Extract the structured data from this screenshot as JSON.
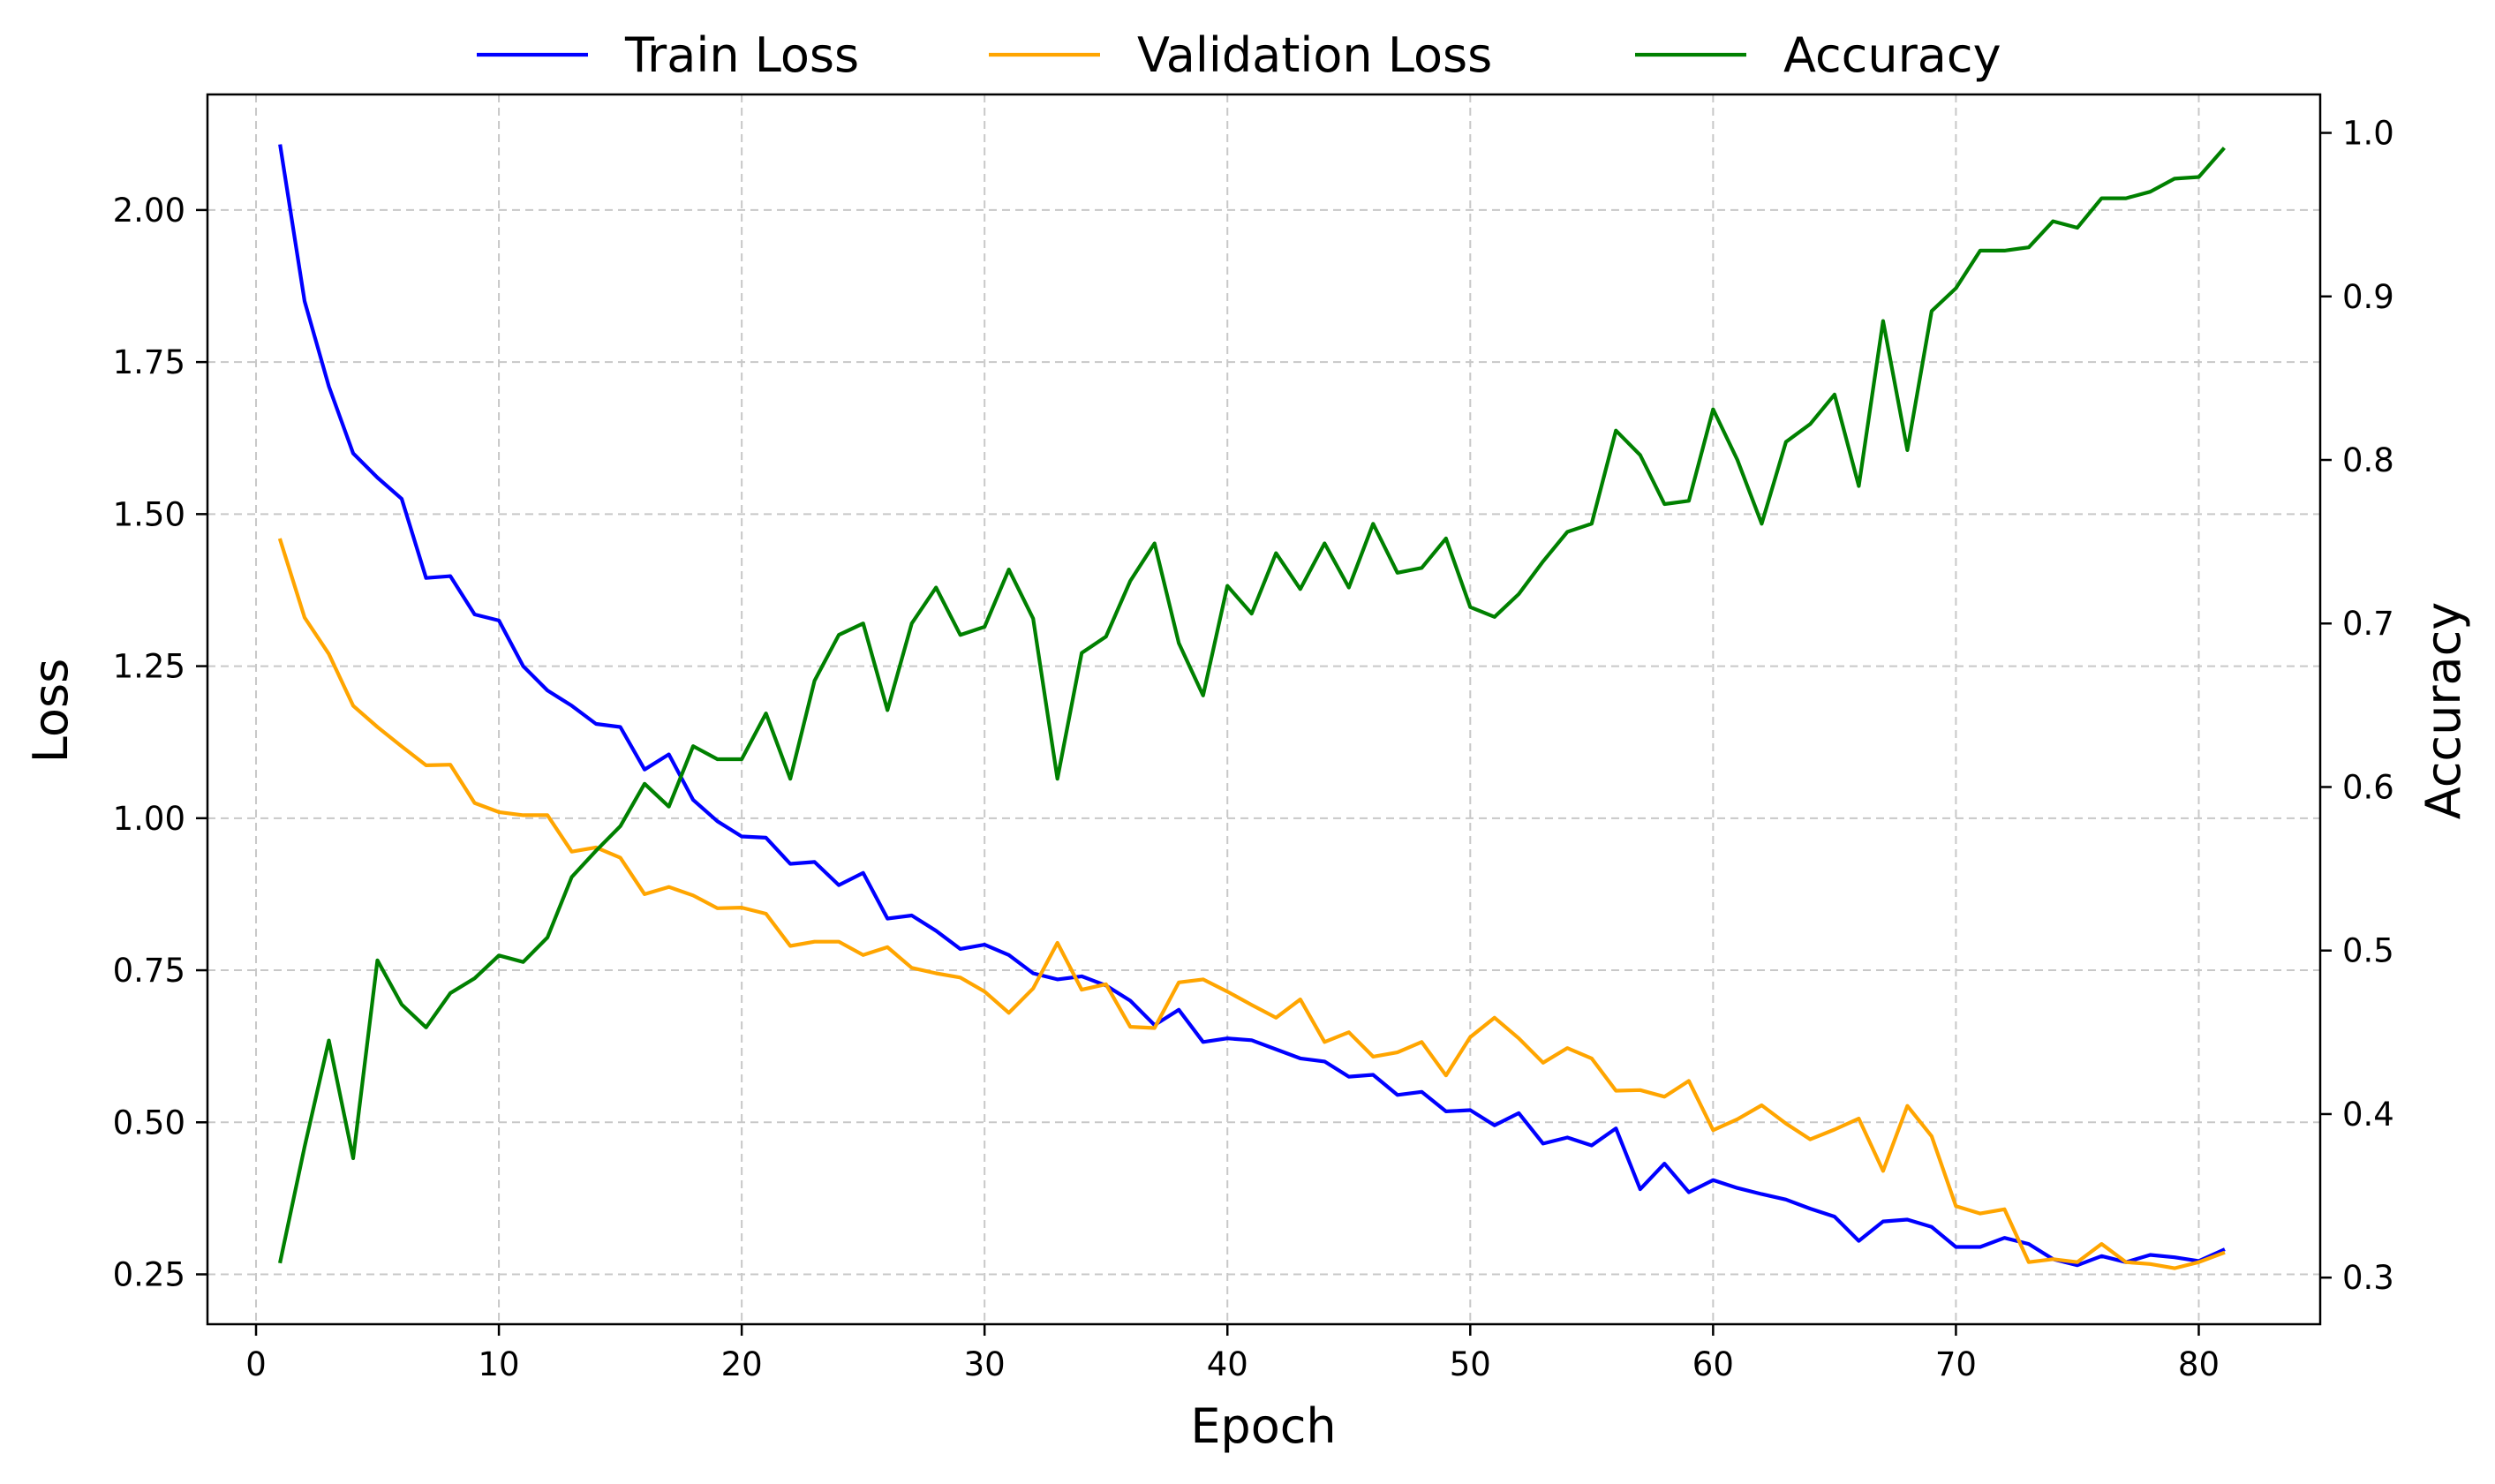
{
  "chart_data": {
    "type": "line",
    "title": "",
    "xlabel": "Epoch",
    "ylabel": "Loss",
    "y2label": "Accuracy",
    "xlim": [
      -2.0,
      85.0
    ],
    "ylim": [
      0.168,
      2.19
    ],
    "y2lim": [
      0.2715,
      1.0235
    ],
    "xticks": [
      0,
      10,
      20,
      30,
      40,
      50,
      60,
      70,
      80
    ],
    "yticks": [
      "0.25",
      "0.50",
      "0.75",
      "1.00",
      "1.25",
      "1.50",
      "1.75",
      "2.00"
    ],
    "y2ticks": [
      "0.3",
      "0.4",
      "0.5",
      "0.6",
      "0.7",
      "0.8",
      "0.9",
      "1.0"
    ],
    "grid": true,
    "legend_position": "top-center, outside",
    "x": [
      1,
      2,
      3,
      4,
      5,
      6,
      7,
      8,
      9,
      10,
      11,
      12,
      13,
      14,
      15,
      16,
      17,
      18,
      19,
      20,
      21,
      22,
      23,
      24,
      25,
      26,
      27,
      28,
      29,
      30,
      31,
      32,
      33,
      34,
      35,
      36,
      37,
      38,
      39,
      40,
      41,
      42,
      43,
      44,
      45,
      46,
      47,
      48,
      49,
      50,
      51,
      52,
      53,
      54,
      55,
      56,
      57,
      58,
      59,
      60,
      61,
      62,
      63,
      64,
      65,
      66,
      67,
      68,
      69,
      70,
      71,
      72,
      73,
      74,
      75,
      76,
      77,
      78,
      79,
      80,
      81
    ],
    "series": [
      {
        "name": "Train Loss",
        "axis": "left",
        "color": "#0000ff",
        "values": [
          2.105,
          1.85,
          1.71,
          1.6,
          1.56,
          1.525,
          1.395,
          1.398,
          1.335,
          1.325,
          1.25,
          1.21,
          1.185,
          1.155,
          1.15,
          1.08,
          1.105,
          1.03,
          0.995,
          0.97,
          0.968,
          0.925,
          0.928,
          0.89,
          0.91,
          0.835,
          0.84,
          0.815,
          0.785,
          0.792,
          0.775,
          0.745,
          0.735,
          0.74,
          0.725,
          0.7,
          0.66,
          0.685,
          0.632,
          0.638,
          0.635,
          0.62,
          0.605,
          0.6,
          0.575,
          0.578,
          0.545,
          0.55,
          0.518,
          0.52,
          0.495,
          0.515,
          0.465,
          0.475,
          0.462,
          0.49,
          0.39,
          0.432,
          0.385,
          0.405,
          0.392,
          0.382,
          0.373,
          0.358,
          0.345,
          0.305,
          0.337,
          0.34,
          0.328,
          0.295,
          0.295,
          0.31,
          0.3,
          0.275,
          0.265,
          0.28,
          0.27,
          0.282,
          0.278,
          0.272,
          0.29
        ]
      },
      {
        "name": "Validation Loss",
        "axis": "left",
        "color": "#ffa500",
        "values": [
          1.457,
          1.33,
          1.27,
          1.185,
          1.15,
          1.118,
          1.087,
          1.088,
          1.025,
          1.01,
          1.005,
          1.005,
          0.945,
          0.952,
          0.935,
          0.875,
          0.887,
          0.873,
          0.852,
          0.853,
          0.843,
          0.79,
          0.797,
          0.797,
          0.775,
          0.788,
          0.754,
          0.745,
          0.738,
          0.715,
          0.68,
          0.72,
          0.795,
          0.718,
          0.727,
          0.657,
          0.655,
          0.73,
          0.735,
          0.715,
          0.693,
          0.672,
          0.702,
          0.632,
          0.648,
          0.608,
          0.615,
          0.632,
          0.577,
          0.64,
          0.672,
          0.638,
          0.598,
          0.622,
          0.605,
          0.552,
          0.553,
          0.542,
          0.568,
          0.487,
          0.505,
          0.528,
          0.498,
          0.472,
          0.488,
          0.506,
          0.42,
          0.527,
          0.477,
          0.362,
          0.35,
          0.357,
          0.27,
          0.275,
          0.27,
          0.3,
          0.27,
          0.267,
          0.26,
          0.27,
          0.285
        ]
      },
      {
        "name": "Accuracy",
        "axis": "right",
        "color": "#008000",
        "values": [
          0.31,
          0.38,
          0.445,
          0.373,
          0.494,
          0.467,
          0.453,
          0.474,
          0.483,
          0.497,
          0.493,
          0.508,
          0.545,
          0.561,
          0.576,
          0.602,
          0.588,
          0.625,
          0.617,
          0.617,
          0.645,
          0.605,
          0.665,
          0.693,
          0.7,
          0.647,
          0.7,
          0.722,
          0.693,
          0.698,
          0.733,
          0.703,
          0.605,
          0.682,
          0.692,
          0.726,
          0.749,
          0.688,
          0.656,
          0.723,
          0.706,
          0.743,
          0.721,
          0.749,
          0.722,
          0.761,
          0.731,
          0.734,
          0.752,
          0.71,
          0.704,
          0.718,
          0.738,
          0.756,
          0.761,
          0.818,
          0.803,
          0.773,
          0.775,
          0.831,
          0.8,
          0.761,
          0.811,
          0.822,
          0.84,
          0.784,
          0.885,
          0.806,
          0.891,
          0.905,
          0.928,
          0.928,
          0.93,
          0.946,
          0.942,
          0.96,
          0.96,
          0.964,
          0.972,
          0.973,
          0.99
        ]
      }
    ]
  }
}
